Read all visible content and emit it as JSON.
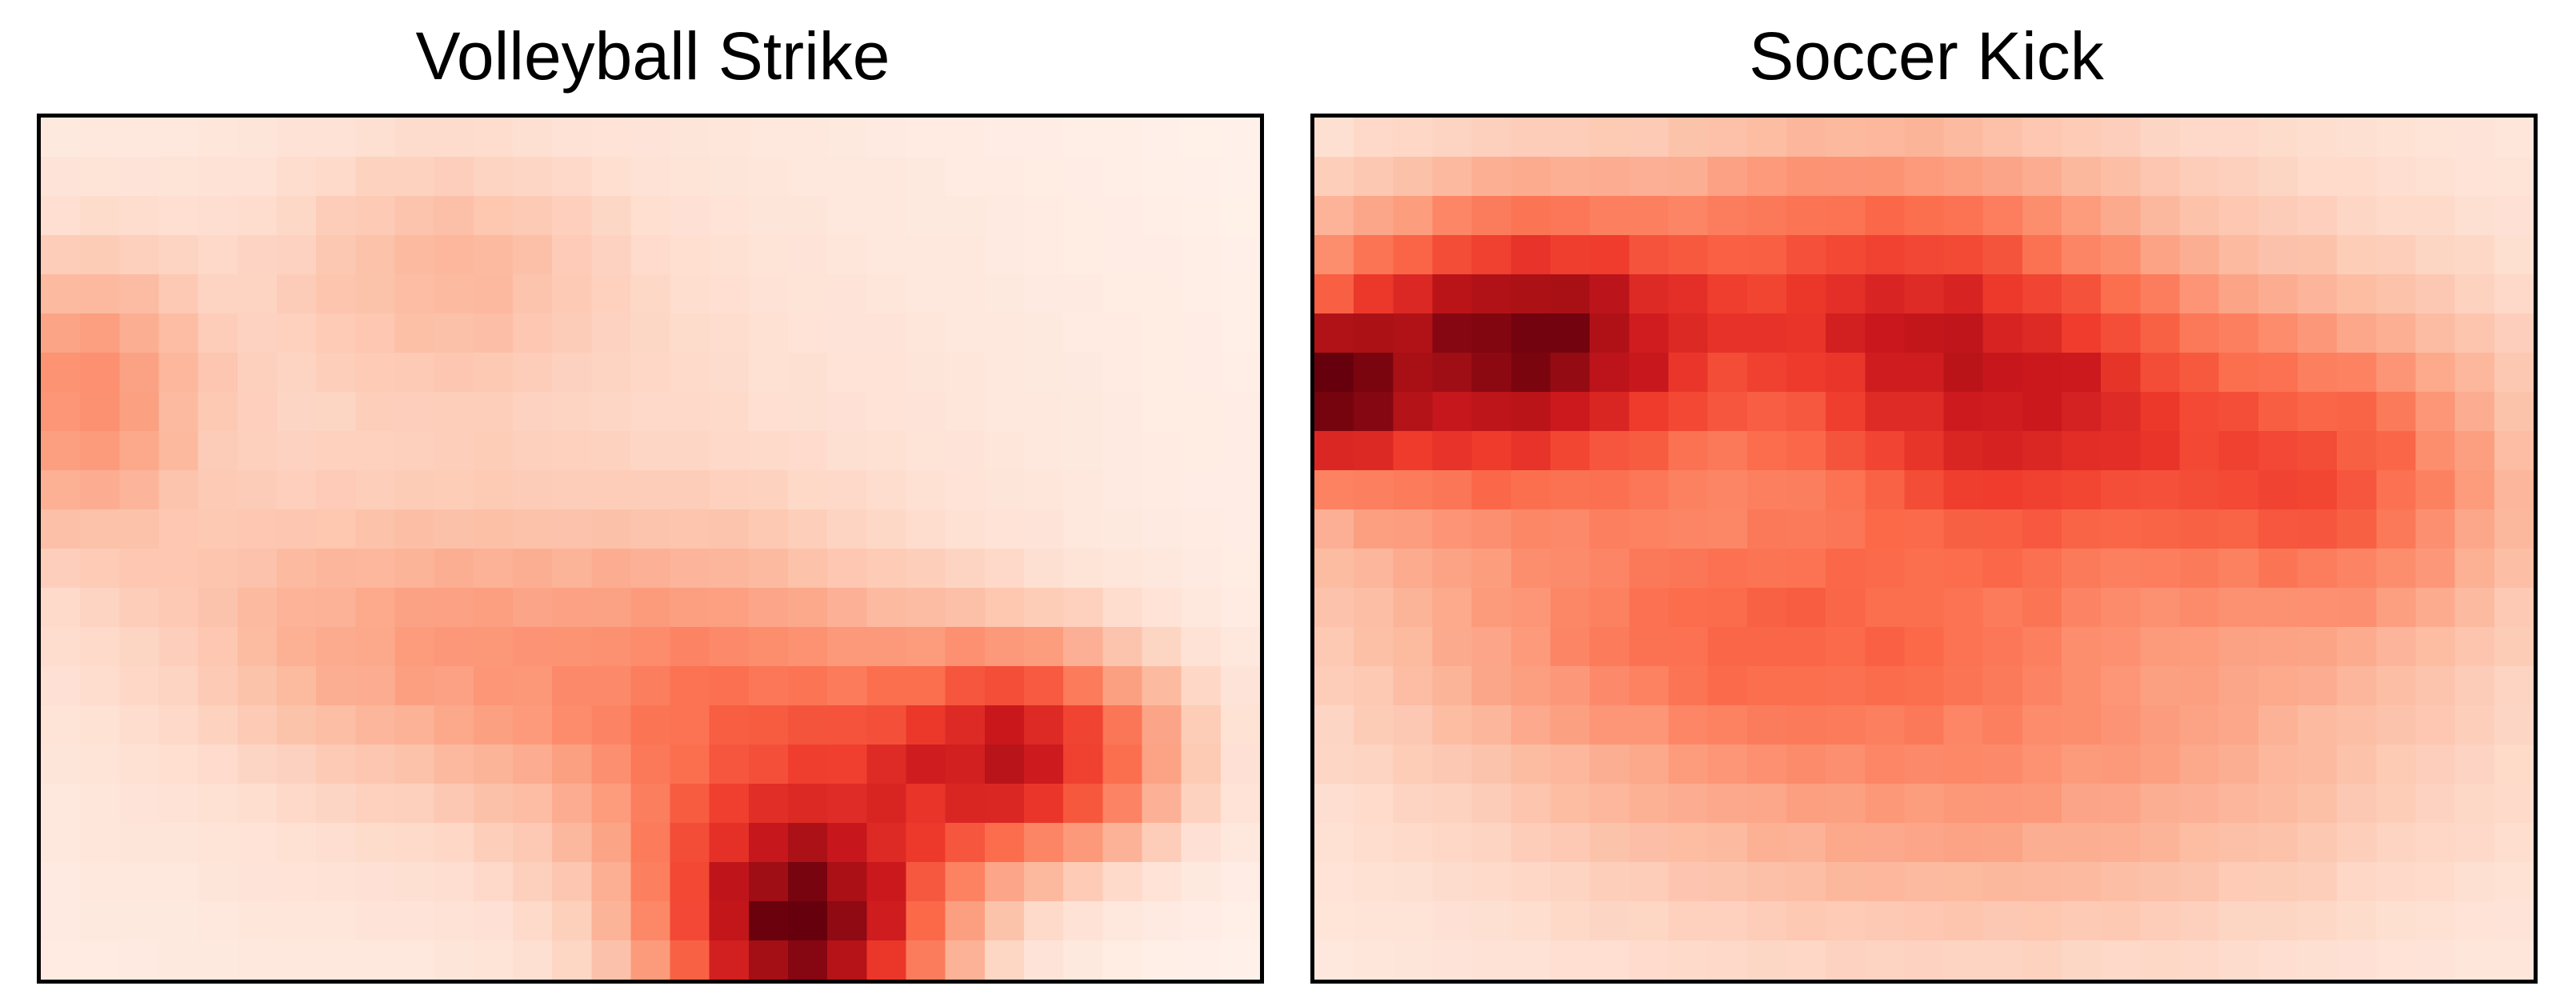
{
  "chart_data": [
    {
      "type": "heatmap",
      "title": "Volleyball Strike",
      "grid": false,
      "colormap": "Reds",
      "rows": 22,
      "cols": 31,
      "blobs": [
        {
          "x": 0.37,
          "y": 0.48,
          "sx": 0.42,
          "sy": 0.48,
          "w": 0.3
        },
        {
          "x": 0.03,
          "y": 0.32,
          "sx": 0.07,
          "sy": 0.12,
          "w": 0.45
        },
        {
          "x": 0.33,
          "y": 0.17,
          "sx": 0.1,
          "sy": 0.1,
          "w": 0.22
        },
        {
          "x": 0.25,
          "y": 0.6,
          "sx": 0.12,
          "sy": 0.1,
          "w": 0.18
        },
        {
          "x": 0.52,
          "y": 0.66,
          "sx": 0.16,
          "sy": 0.12,
          "w": 0.35
        },
        {
          "x": 0.81,
          "y": 0.74,
          "sx": 0.09,
          "sy": 0.09,
          "w": 0.95
        },
        {
          "x": 0.63,
          "y": 0.95,
          "sx": 0.08,
          "sy": 0.1,
          "w": 1.0
        },
        {
          "x": 0.6,
          "y": 0.85,
          "sx": 0.1,
          "sy": 0.14,
          "w": 0.4
        }
      ]
    },
    {
      "type": "heatmap",
      "title": "Soccer Kick",
      "grid": false,
      "colormap": "Reds",
      "rows": 22,
      "cols": 31,
      "blobs": [
        {
          "x": 0.5,
          "y": 0.48,
          "sx": 0.5,
          "sy": 0.45,
          "w": 0.38
        },
        {
          "x": 0.1,
          "y": 0.28,
          "sx": 0.12,
          "sy": 0.12,
          "w": 0.55
        },
        {
          "x": 0.01,
          "y": 0.32,
          "sx": 0.04,
          "sy": 0.06,
          "w": 0.55
        },
        {
          "x": 0.2,
          "y": 0.25,
          "sx": 0.09,
          "sy": 0.1,
          "w": 0.4
        },
        {
          "x": 0.45,
          "y": 0.2,
          "sx": 0.12,
          "sy": 0.12,
          "w": 0.4
        },
        {
          "x": 0.61,
          "y": 0.34,
          "sx": 0.12,
          "sy": 0.12,
          "w": 0.45
        },
        {
          "x": 0.85,
          "y": 0.42,
          "sx": 0.09,
          "sy": 0.12,
          "w": 0.35
        },
        {
          "x": 0.35,
          "y": 0.6,
          "sx": 0.18,
          "sy": 0.1,
          "w": 0.25
        },
        {
          "x": 0.55,
          "y": 0.78,
          "sx": 0.22,
          "sy": 0.12,
          "w": 0.15
        }
      ]
    }
  ]
}
